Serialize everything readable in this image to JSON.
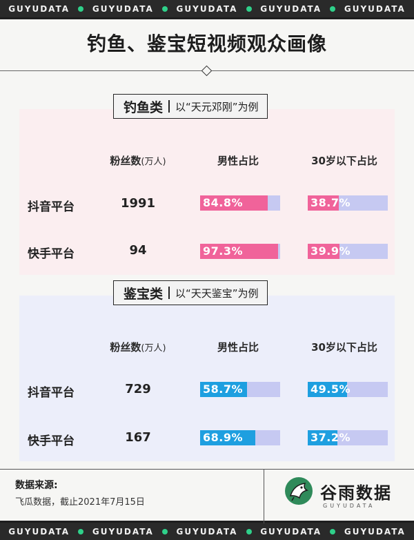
{
  "ticker": {
    "word": "GUYUDATA",
    "count": 5
  },
  "title": "钓鱼、鉴宝短视频观众画像",
  "columns": {
    "fans": "粉丝数",
    "fans_unit": "(万人)",
    "male": "男性占比",
    "young": "30岁以下占比"
  },
  "sections": [
    {
      "category": "钓鱼类",
      "example": "以“天元邓刚”为例",
      "rows": [
        {
          "platform": "抖音平台",
          "fans": "1991",
          "male": "84.8%",
          "young": "38.7%"
        },
        {
          "platform": "快手平台",
          "fans": "94",
          "male": "97.3%",
          "young": "39.9%"
        }
      ]
    },
    {
      "category": "鉴宝类",
      "example": "以“天天鉴宝”为例",
      "rows": [
        {
          "platform": "抖音平台",
          "fans": "729",
          "male": "58.7%",
          "young": "49.5%"
        },
        {
          "platform": "快手平台",
          "fans": "167",
          "male": "68.9%",
          "young": "37.2%"
        }
      ]
    }
  ],
  "chart_data": {
    "type": "table",
    "title": "钓鱼、鉴宝短视频观众画像",
    "columns": [
      "粉丝数(万人)",
      "男性占比",
      "30岁以下占比"
    ],
    "groups": [
      {
        "name": "钓鱼类",
        "rows": [
          {
            "platform": "抖音平台",
            "fans_wan": 1991,
            "male_pct": 84.8,
            "under30_pct": 38.7
          },
          {
            "platform": "快手平台",
            "fans_wan": 94,
            "male_pct": 97.3,
            "under30_pct": 39.9
          }
        ]
      },
      {
        "name": "鉴宝类",
        "rows": [
          {
            "platform": "抖音平台",
            "fans_wan": 729,
            "male_pct": 58.7,
            "under30_pct": 49.5
          },
          {
            "platform": "快手平台",
            "fans_wan": 167,
            "male_pct": 68.9,
            "under30_pct": 37.2
          }
        ]
      }
    ],
    "colors": {
      "fishing_fill": "#f0639a",
      "treasure_fill": "#1e9fe0",
      "bar_track": "#c6c9f2"
    }
  },
  "footer": {
    "source_title": "数据来源:",
    "source_text": "飞瓜数据，截止2021年7月15日",
    "brand": "谷雨数据",
    "brand_en": "GUYUDATA"
  }
}
